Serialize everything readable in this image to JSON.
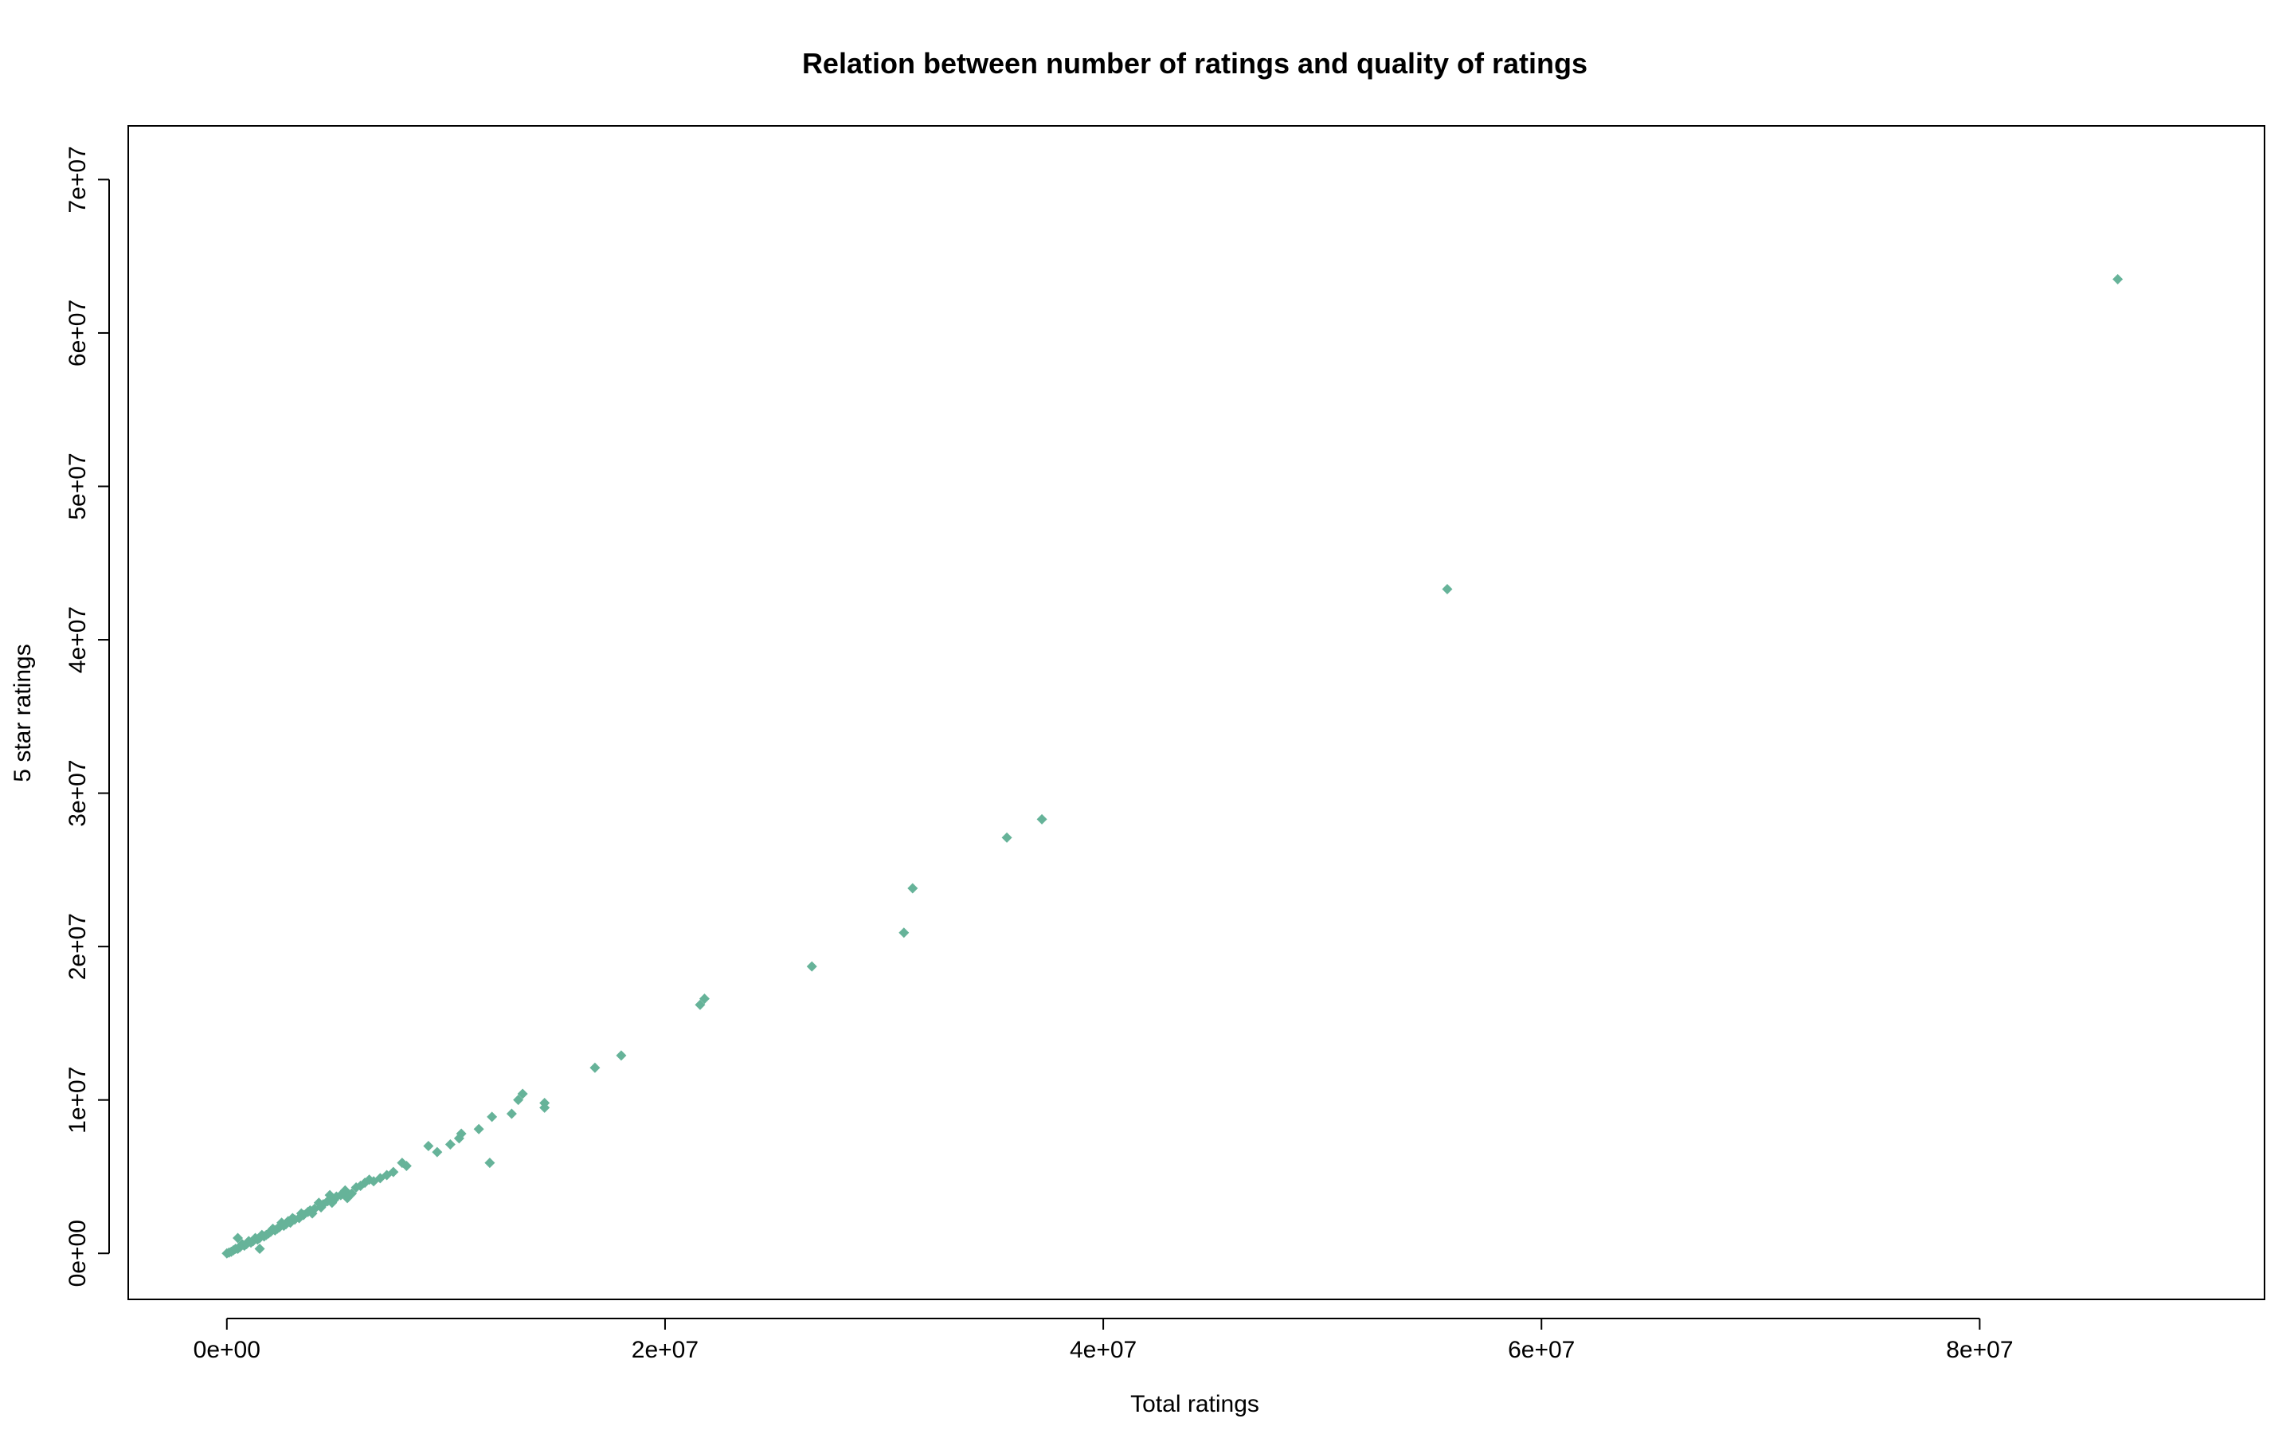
{
  "chart_data": {
    "type": "scatter",
    "title": "Relation between number of ratings and quality of ratings",
    "xlabel": "Total ratings",
    "ylabel": "5 star ratings",
    "xlim": [
      -4500000,
      93000000
    ],
    "ylim": [
      -3000000,
      73500000
    ],
    "xticks": [
      0,
      20000000,
      40000000,
      60000000,
      80000000
    ],
    "xtick_labels": [
      "0e+00",
      "2e+07",
      "4e+07",
      "6e+07",
      "8e+07"
    ],
    "yticks": [
      0,
      10000000,
      20000000,
      30000000,
      40000000,
      50000000,
      60000000,
      70000000
    ],
    "ytick_labels": [
      "0e+00",
      "1e+07",
      "2e+07",
      "3e+07",
      "4e+07",
      "5e+07",
      "6e+07",
      "7e+07"
    ],
    "grid": false,
    "marker": "diamond",
    "color": "#66B399",
    "points": [
      [
        86300000,
        63500000
      ],
      [
        55700000,
        43300000
      ],
      [
        37200000,
        28300000
      ],
      [
        35600000,
        27100000
      ],
      [
        31300000,
        23800000
      ],
      [
        30900000,
        20900000
      ],
      [
        26700000,
        18700000
      ],
      [
        21800000,
        16600000
      ],
      [
        21600000,
        16200000
      ],
      [
        18000000,
        12900000
      ],
      [
        16800000,
        12100000
      ],
      [
        14500000,
        9800000
      ],
      [
        14500000,
        9500000
      ],
      [
        13500000,
        10400000
      ],
      [
        13300000,
        10000000
      ],
      [
        13000000,
        9100000
      ],
      [
        12100000,
        8900000
      ],
      [
        12000000,
        5900000
      ],
      [
        11500000,
        8100000
      ],
      [
        10700000,
        7800000
      ],
      [
        10600000,
        7500000
      ],
      [
        10200000,
        7100000
      ],
      [
        9600000,
        6600000
      ],
      [
        9200000,
        7000000
      ],
      [
        8200000,
        5700000
      ],
      [
        8000000,
        5900000
      ],
      [
        7600000,
        5300000
      ],
      [
        7300000,
        5100000
      ],
      [
        7000000,
        4900000
      ],
      [
        6700000,
        4700000
      ],
      [
        6500000,
        4800000
      ],
      [
        6300000,
        4600000
      ],
      [
        6100000,
        4400000
      ],
      [
        5900000,
        4300000
      ],
      [
        5700000,
        3900000
      ],
      [
        5500000,
        3600000
      ],
      [
        5400000,
        4100000
      ],
      [
        5200000,
        3800000
      ],
      [
        5000000,
        3700000
      ],
      [
        4900000,
        3500000
      ],
      [
        4800000,
        3300000
      ],
      [
        4700000,
        3800000
      ],
      [
        4600000,
        3400000
      ],
      [
        4400000,
        3200000
      ],
      [
        4300000,
        3000000
      ],
      [
        4200000,
        3300000
      ],
      [
        4000000,
        2900000
      ],
      [
        3900000,
        2600000
      ],
      [
        3800000,
        2800000
      ],
      [
        3700000,
        2700000
      ],
      [
        3500000,
        2500000
      ],
      [
        3400000,
        2600000
      ],
      [
        3300000,
        2300000
      ],
      [
        3100000,
        2200000
      ],
      [
        3000000,
        2300000
      ],
      [
        2900000,
        2000000
      ],
      [
        2800000,
        2100000
      ],
      [
        2700000,
        1900000
      ],
      [
        2600000,
        1800000
      ],
      [
        2500000,
        2000000
      ],
      [
        2400000,
        1700000
      ],
      [
        2300000,
        1600000
      ],
      [
        2200000,
        1500000
      ],
      [
        2100000,
        1600000
      ],
      [
        2000000,
        1400000
      ],
      [
        1900000,
        1300000
      ],
      [
        1800000,
        1200000
      ],
      [
        1700000,
        1100000
      ],
      [
        1600000,
        1200000
      ],
      [
        1500000,
        1000000
      ],
      [
        1500000,
        300000
      ],
      [
        1400000,
        900000
      ],
      [
        1300000,
        1000000
      ],
      [
        1200000,
        800000
      ],
      [
        1100000,
        700000
      ],
      [
        1000000,
        800000
      ],
      [
        900000,
        600000
      ],
      [
        800000,
        500000
      ],
      [
        700000,
        600000
      ],
      [
        600000,
        400000
      ],
      [
        500000,
        1000000
      ],
      [
        500000,
        300000
      ],
      [
        400000,
        300000
      ],
      [
        300000,
        200000
      ],
      [
        200000,
        100000
      ],
      [
        100000,
        50000
      ],
      [
        0,
        0
      ]
    ]
  }
}
